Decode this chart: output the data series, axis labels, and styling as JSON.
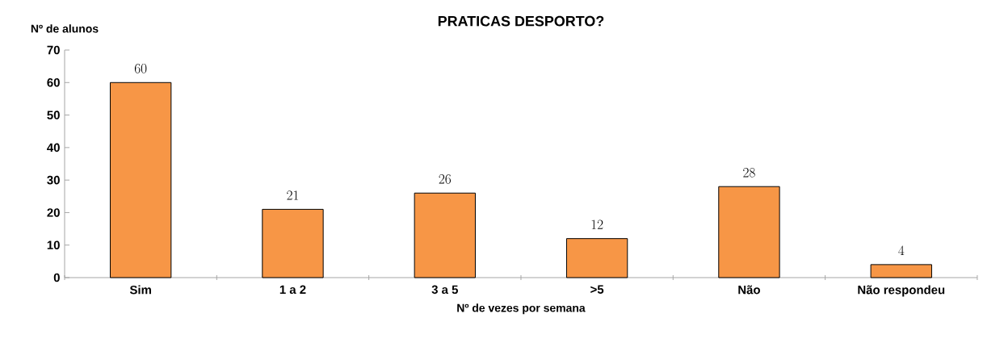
{
  "chart_data": {
    "type": "bar",
    "title": "PRATICAS DESPORTO?",
    "xlabel": "Nº de vezes por semana",
    "ylabel": "Nº de alunos",
    "categories": [
      "Sim",
      "1 a 2",
      "3 a 5",
      ">5",
      "Não",
      "Não respondeu"
    ],
    "values": [
      60,
      21,
      26,
      12,
      28,
      4
    ],
    "color": "#f79646",
    "ylim": [
      0,
      70
    ],
    "yticks": [
      0,
      10,
      20,
      30,
      40,
      50,
      60,
      70
    ],
    "data_labels": true
  }
}
